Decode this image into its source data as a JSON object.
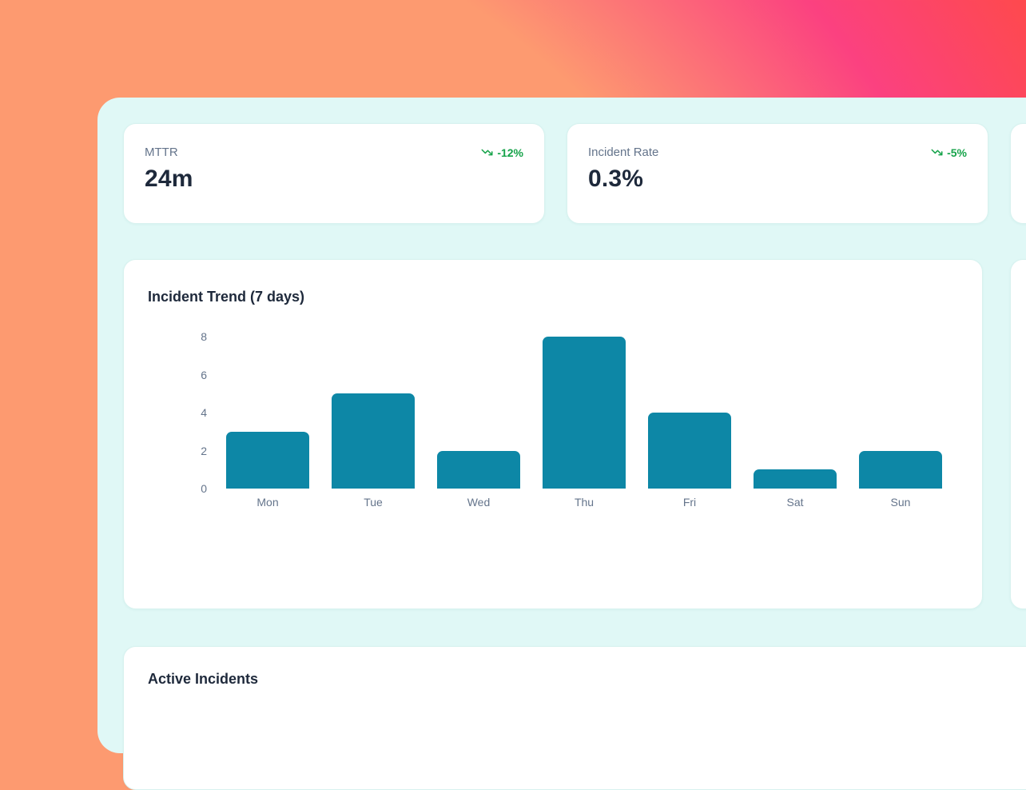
{
  "stats": [
    {
      "label": "MTTR",
      "value": "24m",
      "trend": "-12%",
      "trend_direction": "down"
    },
    {
      "label": "Incident Rate",
      "value": "0.3%",
      "trend": "-5%",
      "trend_direction": "down"
    }
  ],
  "chart_card": {
    "title": "Incident Trend (7 days)"
  },
  "chart_data": {
    "type": "bar",
    "title": "Incident Trend (7 days)",
    "categories": [
      "Mon",
      "Tue",
      "Wed",
      "Thu",
      "Fri",
      "Sat",
      "Sun"
    ],
    "values": [
      3,
      5,
      2,
      8,
      4,
      1,
      2
    ],
    "xlabel": "",
    "ylabel": "",
    "ylim": [
      0,
      8
    ],
    "yticks": [
      0,
      2,
      4,
      6,
      8
    ],
    "grid": false,
    "legend": false,
    "bar_color": "#0d87a6"
  },
  "active_card": {
    "title": "Active Incidents"
  },
  "colors": {
    "trend_positive": "#16a34a",
    "bar": "#0d87a6",
    "panel_background": "#e0f8f6",
    "card_background": "#ffffff",
    "text_primary": "#1e293b",
    "text_muted": "#64748b",
    "bg_gradient_orange": "#fd9a70",
    "bg_gradient_pink": "#fb4180",
    "bg_gradient_red": "#fe4a4a"
  }
}
